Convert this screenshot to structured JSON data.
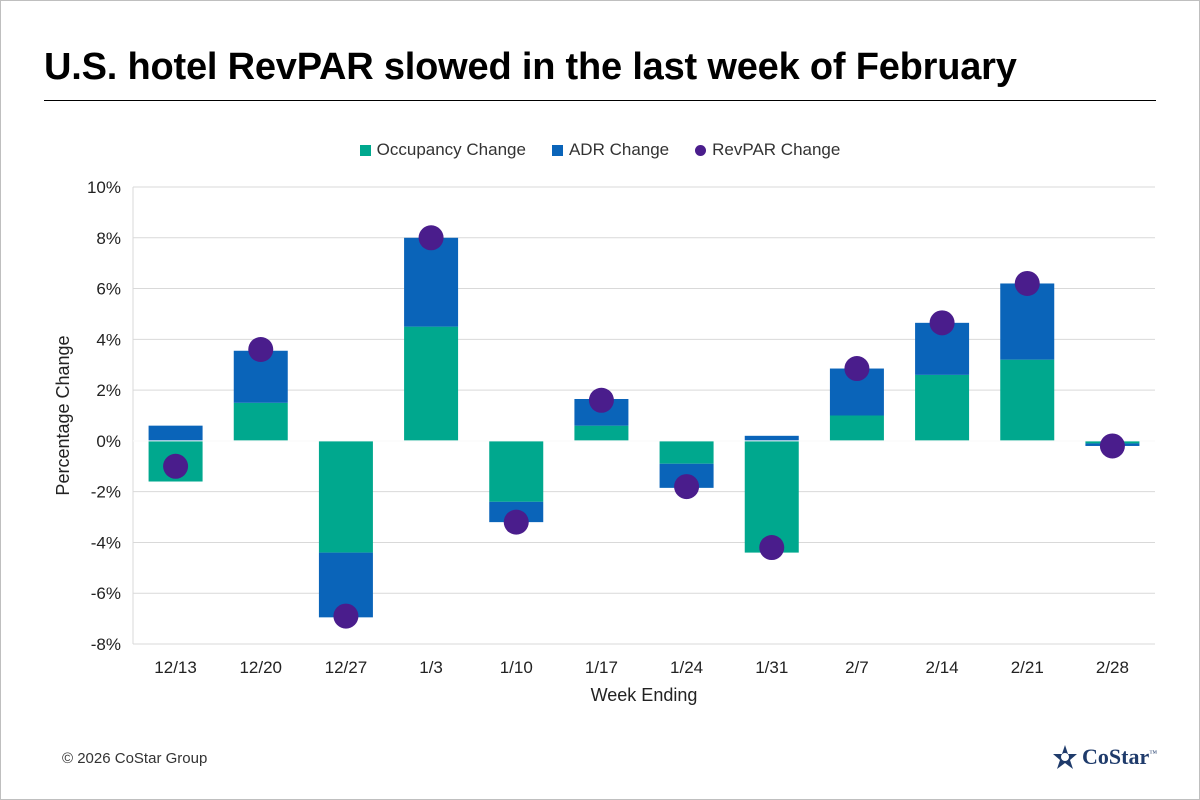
{
  "title": "U.S. hotel RevPAR slowed in the last week of February",
  "copyright": "© 2026 CoStar Group",
  "logo": {
    "text": "CoStar",
    "tm": "™"
  },
  "colors": {
    "occupancy": "#00a88e",
    "adr": "#0a64b9",
    "revpar": "#4a1d8c",
    "grid": "#d9d9d9",
    "logo": "#1f3b6b"
  },
  "chart_data": {
    "type": "bar",
    "stacked": true,
    "title": "U.S. hotel RevPAR slowed in the last week of February",
    "xlabel": "Week Ending",
    "ylabel": "Percentage Change",
    "ylim": [
      -8,
      10
    ],
    "ytick_step": 2,
    "ytick_format": "percent",
    "grid": true,
    "legend_position": "top-center",
    "categories": [
      "12/13",
      "12/20",
      "12/27",
      "1/3",
      "1/10",
      "1/17",
      "1/24",
      "1/31",
      "2/7",
      "2/14",
      "2/21",
      "2/28"
    ],
    "series": [
      {
        "name": "Occupancy Change",
        "kind": "bar",
        "color": "#00a88e",
        "values": [
          -1.6,
          1.5,
          -4.4,
          4.5,
          -2.4,
          0.6,
          -0.9,
          -4.4,
          1.0,
          2.6,
          3.2,
          -0.1
        ]
      },
      {
        "name": "ADR Change",
        "kind": "bar",
        "color": "#0a64b9",
        "values": [
          0.6,
          2.05,
          -2.55,
          3.5,
          -0.8,
          1.05,
          -0.95,
          0.2,
          1.85,
          2.05,
          3.0,
          -0.1
        ]
      },
      {
        "name": "RevPAR Change",
        "kind": "dot",
        "color": "#4a1d8c",
        "values": [
          -1.0,
          3.6,
          -6.9,
          8.0,
          -3.2,
          1.6,
          -1.8,
          -4.2,
          2.85,
          4.65,
          6.2,
          -0.2
        ]
      }
    ]
  }
}
